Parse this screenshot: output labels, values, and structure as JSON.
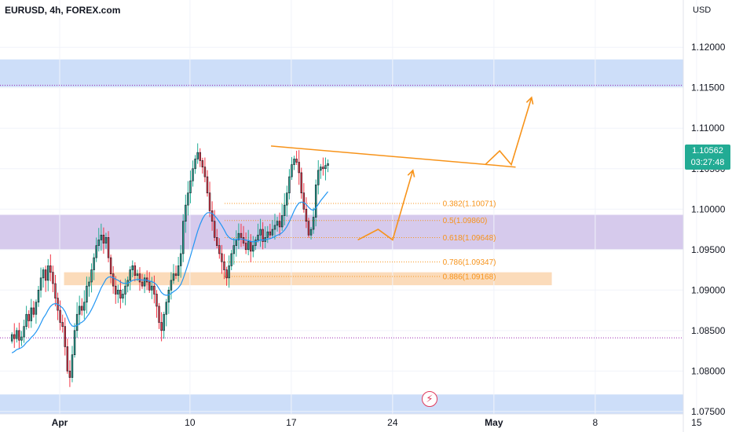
{
  "header": {
    "title": "EURUSD, 4h, FOREX.com",
    "currency": "USD"
  },
  "price_badge": {
    "price": "1.10562",
    "countdown": "03:27:48",
    "color": "#22ab94"
  },
  "event_icon": "lightning-icon",
  "colors": {
    "up": "#22ab94",
    "down": "#f23645",
    "candle_outline": "#131722",
    "ema": "#2196f3",
    "trend": "#f7931a",
    "zone_blue": "#bcd3f7",
    "zone_purple": "#c8b8e6",
    "zone_orange": "#f9cfa3",
    "dotted": "#9c27b0"
  },
  "chart_data": {
    "type": "candlestick",
    "symbol": "EURUSD",
    "timeframe": "4h",
    "ylim": [
      1.0745,
      1.124
    ],
    "yticks": [
      "1.07500",
      "1.08000",
      "1.08500",
      "1.09000",
      "1.09500",
      "1.10000",
      "1.10500",
      "1.11000",
      "1.11500",
      "1.12000"
    ],
    "xticks": [
      "Apr",
      "10",
      "17",
      "24",
      "May",
      "8",
      "15"
    ],
    "x_tick_days": [
      0,
      9,
      16,
      23,
      30,
      37,
      44
    ],
    "first_day": -3.3,
    "candles_per_day": 6,
    "closes": [
      1.0845,
      1.084,
      1.085,
      1.0838,
      1.0842,
      1.0855,
      1.087,
      1.0862,
      1.0878,
      1.087,
      1.0885,
      1.09,
      1.0915,
      1.0925,
      1.0912,
      1.093,
      1.0922,
      1.0908,
      1.089,
      1.0875,
      1.086,
      1.0855,
      1.083,
      1.08,
      1.0792,
      1.082,
      1.085,
      1.087,
      1.088,
      1.0875,
      1.0885,
      1.0905,
      1.091,
      1.0925,
      1.094,
      1.0955,
      1.0962,
      1.0968,
      1.0958,
      1.0965,
      1.094,
      1.092,
      1.0905,
      1.0895,
      1.09,
      1.089,
      1.0895,
      1.0905,
      1.0912,
      1.0925,
      1.093,
      1.0918,
      1.092,
      1.091,
      1.0905,
      1.0915,
      1.091,
      1.09,
      1.0905,
      1.0895,
      1.088,
      1.086,
      1.085,
      1.087,
      1.0885,
      1.09,
      1.0912,
      1.092,
      1.0918,
      1.093,
      1.0945,
      1.0985,
      1.1005,
      1.102,
      1.1035,
      1.105,
      1.1062,
      1.107,
      1.106,
      1.1052,
      1.104,
      1.102,
      1.0998,
      1.0985,
      1.0965,
      1.0955,
      1.0945,
      1.0935,
      1.0925,
      1.0915,
      1.093,
      1.0945,
      1.0955,
      1.0962,
      1.097,
      1.0965,
      1.0958,
      1.095,
      1.096,
      1.0948,
      1.0955,
      1.0962,
      1.0968,
      1.0975,
      1.096,
      1.0965,
      1.0972,
      1.0968,
      1.0975,
      1.098,
      1.0985,
      1.0978,
      1.0992,
      1.1005,
      1.102,
      1.104,
      1.1055,
      1.1062,
      1.1058,
      1.1045,
      1.102,
      1.1,
      1.0985,
      1.0968,
      1.0975,
      1.099,
      1.103,
      1.1048,
      1.1052,
      1.105,
      1.1054,
      1.10562
    ],
    "ema_period": 20,
    "zones": [
      {
        "name": "zone-top",
        "y_range": [
          1.1151,
          1.1185
        ],
        "color": "#bcd3f7"
      },
      {
        "name": "zone-middle",
        "y_range": [
          1.095,
          1.0993
        ],
        "color": "#c8b8e6"
      },
      {
        "name": "zone-bottom",
        "y_range": [
          1.074,
          1.0771
        ],
        "color": "#bcd3f7"
      },
      {
        "name": "zone-demand",
        "y_range": [
          1.0906,
          1.0922
        ],
        "x_day_range": [
          0.3,
          34.0
        ],
        "color": "#f9cfa3"
      }
    ],
    "dotted_levels": [
      1.1153,
      1.0841
    ],
    "fib_levels": [
      {
        "label": "0.382(1.10071)",
        "value": 1.10071
      },
      {
        "label": "0.5(1.09860)",
        "value": 1.0986
      },
      {
        "label": "0.618(1.09648)",
        "value": 1.09648
      },
      {
        "label": "0.786(1.09347)",
        "value": 1.09347
      },
      {
        "label": "0.886(1.09168)",
        "value": 1.09168
      }
    ],
    "fib_x_day_range": [
      11.4,
      26.3
    ],
    "trend_line": [
      [
        14.6,
        1.1078
      ],
      [
        31.5,
        1.1052
      ]
    ],
    "zigzag_up": [
      [
        20.6,
        1.0962
      ],
      [
        22.0,
        1.0975
      ],
      [
        23.0,
        1.0962
      ],
      [
        24.4,
        1.1048
      ]
    ],
    "forecast": [
      [
        29.4,
        1.1055
      ],
      [
        30.4,
        1.1072
      ],
      [
        31.2,
        1.1055
      ],
      [
        32.6,
        1.1138
      ]
    ]
  }
}
